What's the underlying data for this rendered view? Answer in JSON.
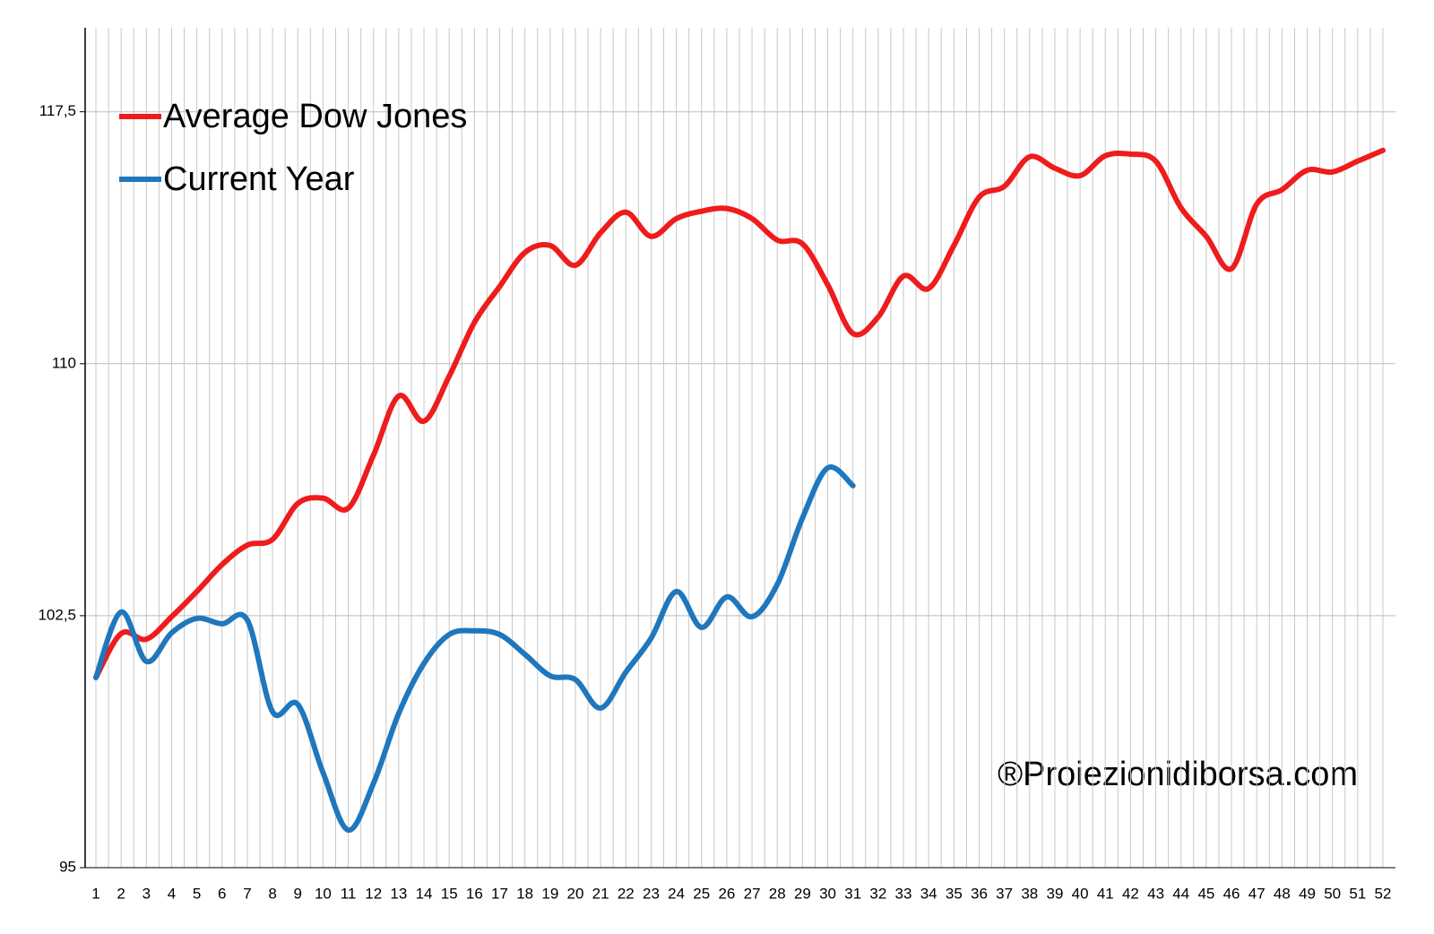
{
  "chart_data": {
    "type": "line",
    "categories": [
      "1",
      "2",
      "3",
      "4",
      "5",
      "6",
      "7",
      "8",
      "9",
      "10",
      "11",
      "12",
      "13",
      "14",
      "15",
      "16",
      "17",
      "18",
      "19",
      "20",
      "21",
      "22",
      "23",
      "24",
      "25",
      "26",
      "27",
      "28",
      "29",
      "30",
      "31",
      "32",
      "33",
      "34",
      "35",
      "36",
      "37",
      "38",
      "39",
      "40",
      "41",
      "42",
      "43",
      "44",
      "45",
      "46",
      "47",
      "48",
      "49",
      "50",
      "51",
      "52"
    ],
    "series": [
      {
        "name": "Average Dow Jones",
        "color": "#ee1c1c",
        "values": [
          100.66,
          101.97,
          101.8,
          102.47,
          103.22,
          104.02,
          104.6,
          104.77,
          105.84,
          106.0,
          105.7,
          107.28,
          109.04,
          108.29,
          109.63,
          111.23,
          112.3,
          113.31,
          113.52,
          112.93,
          113.9,
          114.51,
          113.79,
          114.32,
          114.54,
          114.62,
          114.32,
          113.68,
          113.57,
          112.35,
          110.9,
          111.39,
          112.61,
          112.24,
          113.52,
          114.96,
          115.28,
          116.16,
          115.82,
          115.6,
          116.19,
          116.24,
          116.03,
          114.64,
          113.79,
          112.83,
          114.75,
          115.18,
          115.76,
          115.71,
          116.03,
          116.35
        ]
      },
      {
        "name": "Current Year",
        "color": "#1f77bd",
        "values": [
          100.66,
          102.61,
          101.14,
          101.99,
          102.42,
          102.26,
          102.37,
          99.64,
          99.86,
          97.83,
          96.12,
          97.51,
          99.59,
          101.08,
          101.94,
          102.05,
          101.94,
          101.35,
          100.71,
          100.6,
          99.75,
          100.82,
          101.83,
          103.22,
          102.15,
          103.06,
          102.47,
          103.43,
          105.41,
          106.9,
          106.37,
          null,
          null,
          null,
          null,
          null,
          null,
          null,
          null,
          null,
          null,
          null,
          null,
          null,
          null,
          null,
          null,
          null,
          null,
          null,
          null,
          null
        ]
      }
    ],
    "ylim": [
      95,
      120
    ],
    "yticks": [
      {
        "value": 95,
        "label": "95"
      },
      {
        "value": 102.5,
        "label": "102,5"
      },
      {
        "value": 110,
        "label": "110"
      },
      {
        "value": 117.5,
        "label": "117,5"
      }
    ],
    "grid": true,
    "legend": "top-left",
    "annotation": "®Proiezionidiborsa.com"
  }
}
